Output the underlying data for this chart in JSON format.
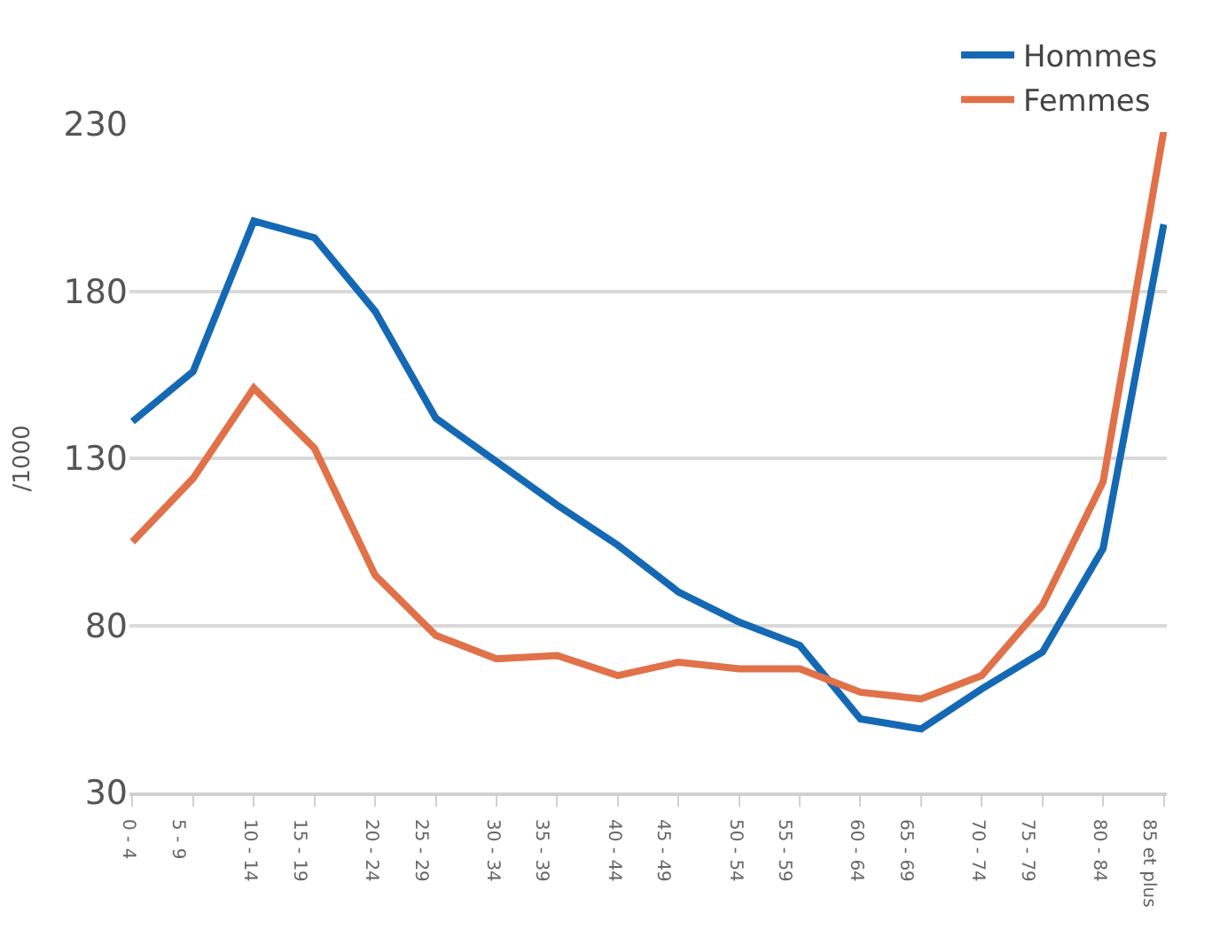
{
  "chart_data": {
    "type": "line",
    "ylabel": "/1000",
    "categories": [
      "0 - 4",
      "5 - 9",
      "10 - 14",
      "15 - 19",
      "20 - 24",
      "25 - 29",
      "30 - 34",
      "35 - 39",
      "40 - 44",
      "45 - 49",
      "50 - 54",
      "55 - 59",
      "60 - 64",
      "65 - 69",
      "70 - 74",
      "75 - 79",
      "80 - 84",
      "85 et plus"
    ],
    "series": [
      {
        "name": "Hommes",
        "color": "#1569b4",
        "values": [
          141,
          156,
          201,
          196,
          174,
          142,
          129,
          116,
          104,
          90,
          81,
          74,
          52,
          49,
          61,
          72,
          103,
          200
        ]
      },
      {
        "name": "Femmes",
        "color": "#e07149",
        "values": [
          105,
          124,
          151,
          133,
          95,
          77,
          70,
          71,
          65,
          69,
          67,
          67,
          60,
          58,
          65,
          86,
          123,
          228
        ]
      }
    ],
    "ylim": [
      30,
      230
    ],
    "yticks": [
      30,
      80,
      130,
      180,
      230
    ],
    "grid": "y",
    "legend": "top right",
    "marker": "none",
    "line_style": "solid"
  }
}
